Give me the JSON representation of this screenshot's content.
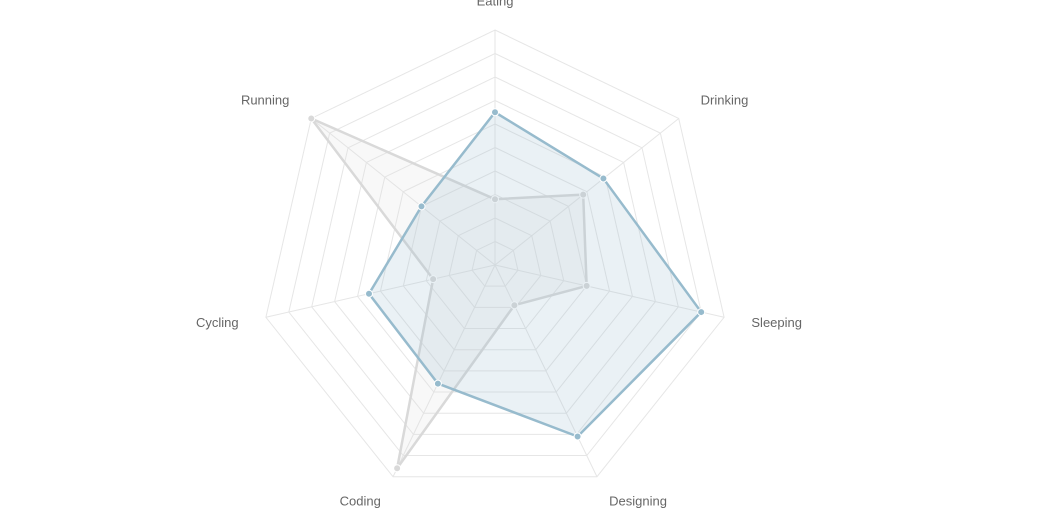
{
  "chart_data": {
    "type": "radar",
    "labels": [
      "Eating",
      "Drinking",
      "Sleeping",
      "Designing",
      "Coding",
      "Cycling",
      "Running"
    ],
    "series": [
      {
        "values": [
          28,
          48,
          40,
          19,
          96,
          27,
          100
        ],
        "color": "#d9d9d9",
        "fill": "rgba(220,220,220,0.2)"
      },
      {
        "values": [
          65,
          59,
          90,
          81,
          56,
          55,
          40
        ],
        "color": "#97bbcd",
        "fill": "rgba(151,187,205,0.2)"
      }
    ],
    "scale": {
      "min": 0,
      "max": 100,
      "steps": 10
    },
    "grid": true
  }
}
